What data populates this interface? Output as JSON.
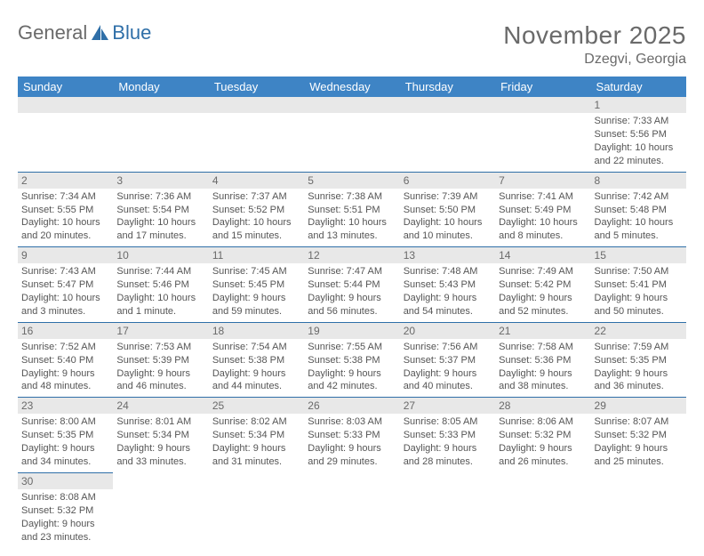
{
  "logo": {
    "text1": "General",
    "text2": "Blue"
  },
  "title": {
    "month": "November 2025",
    "location": "Dzegvi, Georgia"
  },
  "colors": {
    "header_bg": "#3e84c5",
    "header_text": "#ffffff",
    "border": "#2f6fa8",
    "daynum_bg": "#e8e8e8",
    "text": "#555555",
    "title_text": "#6a6a6a"
  },
  "daynames": [
    "Sunday",
    "Monday",
    "Tuesday",
    "Wednesday",
    "Thursday",
    "Friday",
    "Saturday"
  ],
  "weeks": [
    [
      null,
      null,
      null,
      null,
      null,
      null,
      {
        "n": "1",
        "sr": "Sunrise: 7:33 AM",
        "ss": "Sunset: 5:56 PM",
        "dl1": "Daylight: 10 hours",
        "dl2": "and 22 minutes."
      }
    ],
    [
      {
        "n": "2",
        "sr": "Sunrise: 7:34 AM",
        "ss": "Sunset: 5:55 PM",
        "dl1": "Daylight: 10 hours",
        "dl2": "and 20 minutes."
      },
      {
        "n": "3",
        "sr": "Sunrise: 7:36 AM",
        "ss": "Sunset: 5:54 PM",
        "dl1": "Daylight: 10 hours",
        "dl2": "and 17 minutes."
      },
      {
        "n": "4",
        "sr": "Sunrise: 7:37 AM",
        "ss": "Sunset: 5:52 PM",
        "dl1": "Daylight: 10 hours",
        "dl2": "and 15 minutes."
      },
      {
        "n": "5",
        "sr": "Sunrise: 7:38 AM",
        "ss": "Sunset: 5:51 PM",
        "dl1": "Daylight: 10 hours",
        "dl2": "and 13 minutes."
      },
      {
        "n": "6",
        "sr": "Sunrise: 7:39 AM",
        "ss": "Sunset: 5:50 PM",
        "dl1": "Daylight: 10 hours",
        "dl2": "and 10 minutes."
      },
      {
        "n": "7",
        "sr": "Sunrise: 7:41 AM",
        "ss": "Sunset: 5:49 PM",
        "dl1": "Daylight: 10 hours",
        "dl2": "and 8 minutes."
      },
      {
        "n": "8",
        "sr": "Sunrise: 7:42 AM",
        "ss": "Sunset: 5:48 PM",
        "dl1": "Daylight: 10 hours",
        "dl2": "and 5 minutes."
      }
    ],
    [
      {
        "n": "9",
        "sr": "Sunrise: 7:43 AM",
        "ss": "Sunset: 5:47 PM",
        "dl1": "Daylight: 10 hours",
        "dl2": "and 3 minutes."
      },
      {
        "n": "10",
        "sr": "Sunrise: 7:44 AM",
        "ss": "Sunset: 5:46 PM",
        "dl1": "Daylight: 10 hours",
        "dl2": "and 1 minute."
      },
      {
        "n": "11",
        "sr": "Sunrise: 7:45 AM",
        "ss": "Sunset: 5:45 PM",
        "dl1": "Daylight: 9 hours",
        "dl2": "and 59 minutes."
      },
      {
        "n": "12",
        "sr": "Sunrise: 7:47 AM",
        "ss": "Sunset: 5:44 PM",
        "dl1": "Daylight: 9 hours",
        "dl2": "and 56 minutes."
      },
      {
        "n": "13",
        "sr": "Sunrise: 7:48 AM",
        "ss": "Sunset: 5:43 PM",
        "dl1": "Daylight: 9 hours",
        "dl2": "and 54 minutes."
      },
      {
        "n": "14",
        "sr": "Sunrise: 7:49 AM",
        "ss": "Sunset: 5:42 PM",
        "dl1": "Daylight: 9 hours",
        "dl2": "and 52 minutes."
      },
      {
        "n": "15",
        "sr": "Sunrise: 7:50 AM",
        "ss": "Sunset: 5:41 PM",
        "dl1": "Daylight: 9 hours",
        "dl2": "and 50 minutes."
      }
    ],
    [
      {
        "n": "16",
        "sr": "Sunrise: 7:52 AM",
        "ss": "Sunset: 5:40 PM",
        "dl1": "Daylight: 9 hours",
        "dl2": "and 48 minutes."
      },
      {
        "n": "17",
        "sr": "Sunrise: 7:53 AM",
        "ss": "Sunset: 5:39 PM",
        "dl1": "Daylight: 9 hours",
        "dl2": "and 46 minutes."
      },
      {
        "n": "18",
        "sr": "Sunrise: 7:54 AM",
        "ss": "Sunset: 5:38 PM",
        "dl1": "Daylight: 9 hours",
        "dl2": "and 44 minutes."
      },
      {
        "n": "19",
        "sr": "Sunrise: 7:55 AM",
        "ss": "Sunset: 5:38 PM",
        "dl1": "Daylight: 9 hours",
        "dl2": "and 42 minutes."
      },
      {
        "n": "20",
        "sr": "Sunrise: 7:56 AM",
        "ss": "Sunset: 5:37 PM",
        "dl1": "Daylight: 9 hours",
        "dl2": "and 40 minutes."
      },
      {
        "n": "21",
        "sr": "Sunrise: 7:58 AM",
        "ss": "Sunset: 5:36 PM",
        "dl1": "Daylight: 9 hours",
        "dl2": "and 38 minutes."
      },
      {
        "n": "22",
        "sr": "Sunrise: 7:59 AM",
        "ss": "Sunset: 5:35 PM",
        "dl1": "Daylight: 9 hours",
        "dl2": "and 36 minutes."
      }
    ],
    [
      {
        "n": "23",
        "sr": "Sunrise: 8:00 AM",
        "ss": "Sunset: 5:35 PM",
        "dl1": "Daylight: 9 hours",
        "dl2": "and 34 minutes."
      },
      {
        "n": "24",
        "sr": "Sunrise: 8:01 AM",
        "ss": "Sunset: 5:34 PM",
        "dl1": "Daylight: 9 hours",
        "dl2": "and 33 minutes."
      },
      {
        "n": "25",
        "sr": "Sunrise: 8:02 AM",
        "ss": "Sunset: 5:34 PM",
        "dl1": "Daylight: 9 hours",
        "dl2": "and 31 minutes."
      },
      {
        "n": "26",
        "sr": "Sunrise: 8:03 AM",
        "ss": "Sunset: 5:33 PM",
        "dl1": "Daylight: 9 hours",
        "dl2": "and 29 minutes."
      },
      {
        "n": "27",
        "sr": "Sunrise: 8:05 AM",
        "ss": "Sunset: 5:33 PM",
        "dl1": "Daylight: 9 hours",
        "dl2": "and 28 minutes."
      },
      {
        "n": "28",
        "sr": "Sunrise: 8:06 AM",
        "ss": "Sunset: 5:32 PM",
        "dl1": "Daylight: 9 hours",
        "dl2": "and 26 minutes."
      },
      {
        "n": "29",
        "sr": "Sunrise: 8:07 AM",
        "ss": "Sunset: 5:32 PM",
        "dl1": "Daylight: 9 hours",
        "dl2": "and 25 minutes."
      }
    ],
    [
      {
        "n": "30",
        "sr": "Sunrise: 8:08 AM",
        "ss": "Sunset: 5:32 PM",
        "dl1": "Daylight: 9 hours",
        "dl2": "and 23 minutes."
      },
      null,
      null,
      null,
      null,
      null,
      null
    ]
  ]
}
